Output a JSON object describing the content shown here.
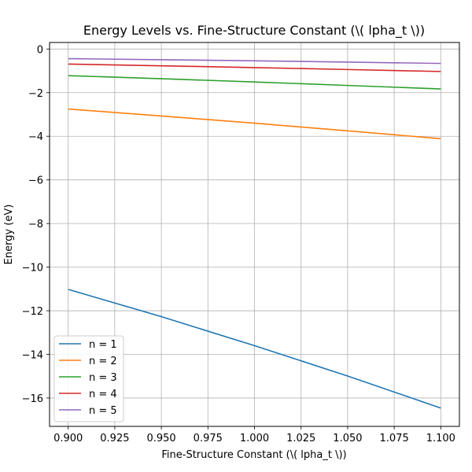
{
  "chart_data": {
    "type": "line",
    "title": "Energy Levels vs. Fine-Structure Constant (\\( \u0007lpha_t \\))",
    "xlabel": "Fine-Structure Constant (\\( \u0007lpha_t \\))",
    "ylabel": "Energy (eV)",
    "xlim": [
      0.89,
      1.11
    ],
    "ylim": [
      -17.3,
      0.3
    ],
    "x_ticks": [
      0.9,
      0.925,
      0.95,
      0.975,
      1.0,
      1.025,
      1.05,
      1.075,
      1.1
    ],
    "x_tick_labels": [
      "0.900",
      "0.925",
      "0.950",
      "0.975",
      "1.000",
      "1.025",
      "1.050",
      "1.075",
      "1.100"
    ],
    "y_ticks": [
      0,
      -2,
      -4,
      -6,
      -8,
      -10,
      -12,
      -14,
      -16
    ],
    "y_tick_labels": [
      "0",
      "−2",
      "−4",
      "−6",
      "−8",
      "−10",
      "−12",
      "−14",
      "−16"
    ],
    "grid": true,
    "legend_position": "lower-left",
    "x": [
      0.9,
      0.95,
      1.0,
      1.05,
      1.1
    ],
    "series": [
      {
        "name": "n = 1",
        "color": "#1f77b4",
        "values": [
          -11.02,
          -12.27,
          -13.6,
          -14.99,
          -16.46
        ]
      },
      {
        "name": "n = 2",
        "color": "#ff7f0e",
        "values": [
          -2.75,
          -3.07,
          -3.4,
          -3.75,
          -4.11
        ]
      },
      {
        "name": "n = 3",
        "color": "#2ca02c",
        "values": [
          -1.22,
          -1.36,
          -1.51,
          -1.67,
          -1.83
        ]
      },
      {
        "name": "n = 4",
        "color": "#d62728",
        "values": [
          -0.69,
          -0.77,
          -0.85,
          -0.94,
          -1.03
        ]
      },
      {
        "name": "n = 5",
        "color": "#9467bd",
        "values": [
          -0.44,
          -0.49,
          -0.54,
          -0.6,
          -0.66
        ]
      }
    ]
  }
}
